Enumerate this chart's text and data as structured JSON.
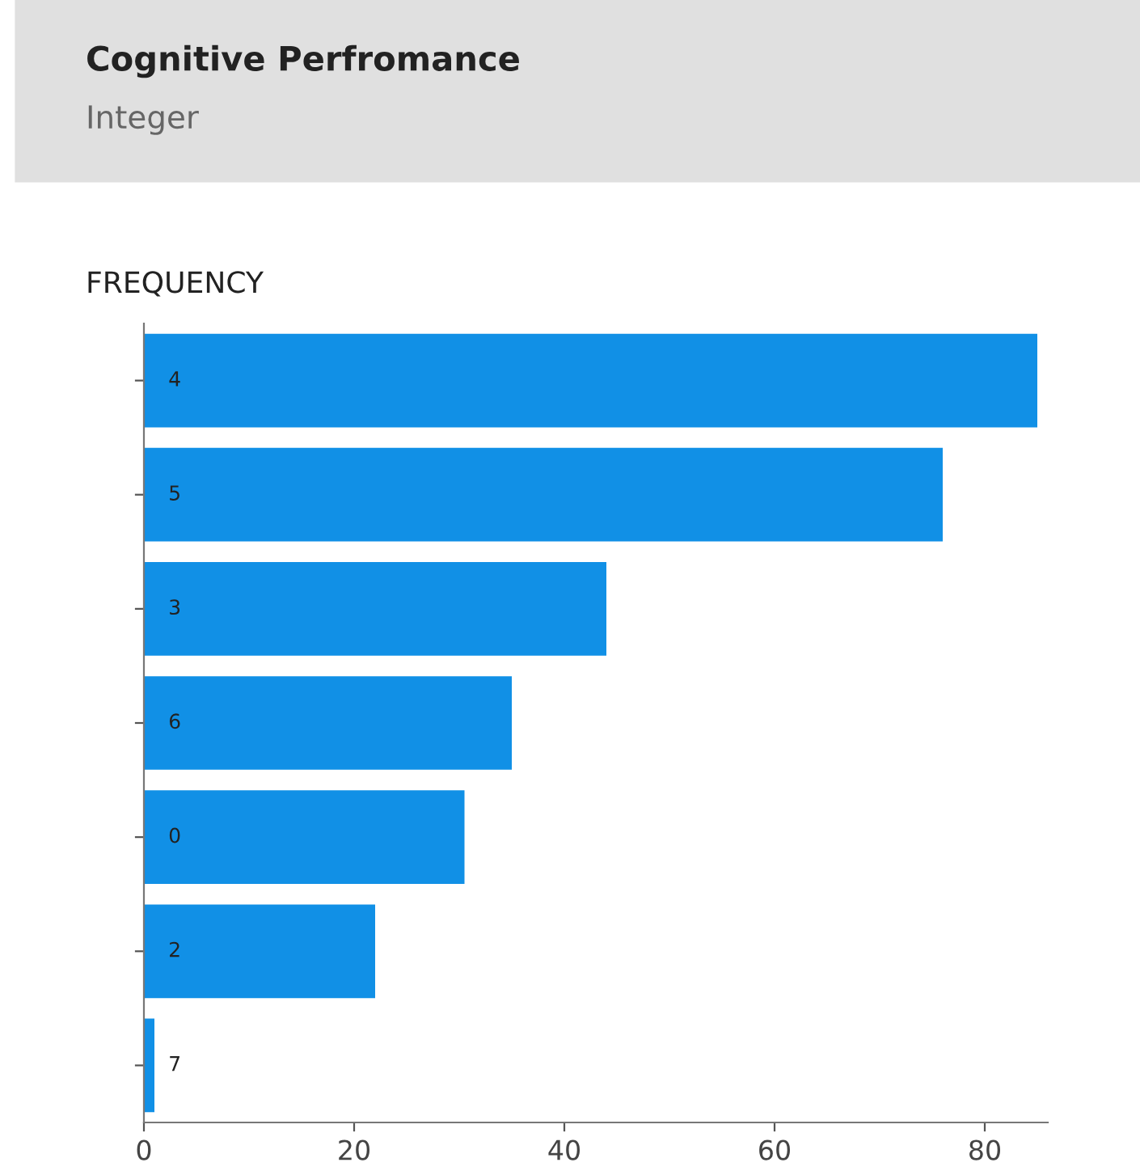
{
  "chart_data": {
    "type": "bar",
    "orientation": "horizontal",
    "title": "Cognitive Perfromance",
    "subtitle": "Integer",
    "xlabel": "FREQUENCY",
    "categories": [
      "4",
      "5",
      "3",
      "6",
      "0",
      "2",
      "7"
    ],
    "values": [
      85,
      76,
      44,
      35,
      30.5,
      22,
      1
    ],
    "color": "#1190e6",
    "xlim": [
      0,
      86
    ],
    "xticks": [
      0,
      20,
      40,
      60,
      80
    ],
    "grid": false
  }
}
